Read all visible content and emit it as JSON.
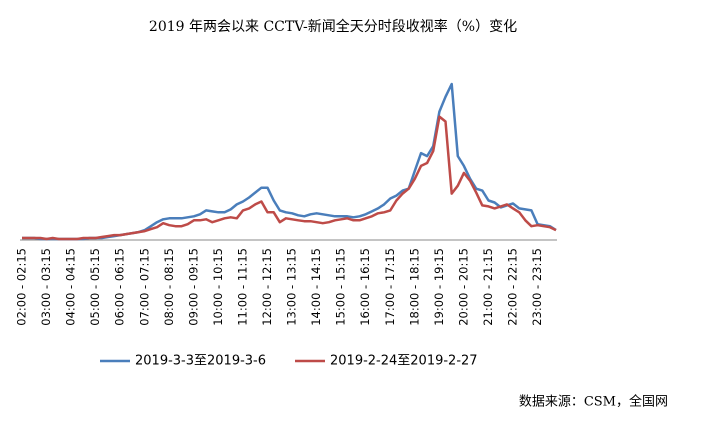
{
  "chart_data": {
    "type": "line",
    "title": "2019 年两会以来 CCTV-新闻全天分时段收视率（%）变化",
    "source": "数据来源：CSM，全国网",
    "categories": [
      "02:00 - 02:15",
      null,
      null,
      null,
      "03:00 - 03:15",
      null,
      null,
      null,
      "04:00 - 04:15",
      null,
      null,
      null,
      "05:00 - 05:15",
      null,
      null,
      null,
      "06:00 - 06:15",
      null,
      null,
      null,
      "07:00 - 07:15",
      null,
      null,
      null,
      "08:00 - 08:15",
      null,
      null,
      null,
      "09:00 - 09:15",
      null,
      null,
      null,
      "10:00 - 10:15",
      null,
      null,
      null,
      "11:00 - 11:15",
      null,
      null,
      null,
      "12:00 - 12:15",
      null,
      null,
      null,
      "13:00 - 13:15",
      null,
      null,
      null,
      "14:00 - 14:15",
      null,
      null,
      null,
      "15:00 - 15:15",
      null,
      null,
      null,
      "16:00 - 16:15",
      null,
      null,
      null,
      "17:00 - 17:15",
      null,
      null,
      null,
      "18:00 - 18:15",
      null,
      null,
      null,
      "19:00 - 19:15",
      null,
      null,
      null,
      "20:00 - 20:15",
      null,
      null,
      null,
      "21:00 - 21:15",
      null,
      null,
      null,
      "22:00 - 22:15",
      null,
      null,
      null,
      "23:00 - 23:15",
      null,
      null,
      null
    ],
    "series": [
      {
        "name": "2019-3-3至2019-3-6",
        "color": "#4a7ebb",
        "values": [
          0.02,
          0.02,
          0.02,
          0.01,
          0.01,
          0.01,
          0.01,
          0.01,
          0.01,
          0.01,
          0.01,
          0.02,
          0.02,
          0.02,
          0.03,
          0.04,
          0.05,
          0.06,
          0.07,
          0.08,
          0.1,
          0.14,
          0.18,
          0.21,
          0.22,
          0.22,
          0.22,
          0.23,
          0.24,
          0.26,
          0.3,
          0.29,
          0.28,
          0.28,
          0.31,
          0.36,
          0.39,
          0.43,
          0.48,
          0.53,
          0.53,
          0.4,
          0.3,
          0.28,
          0.27,
          0.25,
          0.24,
          0.26,
          0.27,
          0.26,
          0.25,
          0.24,
          0.24,
          0.24,
          0.23,
          0.24,
          0.26,
          0.29,
          0.32,
          0.36,
          0.42,
          0.45,
          0.5,
          0.52,
          0.7,
          0.88,
          0.85,
          0.95,
          1.3,
          1.45,
          1.58,
          0.85,
          0.75,
          0.62,
          0.52,
          0.5,
          0.4,
          0.38,
          0.33,
          0.35,
          0.37,
          0.32,
          0.31,
          0.3,
          0.16,
          0.15,
          0.14,
          0.1
        ]
      },
      {
        "name": "2019-2-24至2019-2-27",
        "color": "#be4b48",
        "values": [
          0.02,
          0.02,
          0.02,
          0.02,
          0.01,
          0.02,
          0.01,
          0.01,
          0.01,
          0.01,
          0.02,
          0.02,
          0.02,
          0.03,
          0.04,
          0.05,
          0.05,
          0.06,
          0.07,
          0.08,
          0.09,
          0.11,
          0.13,
          0.17,
          0.15,
          0.14,
          0.14,
          0.16,
          0.2,
          0.2,
          0.21,
          0.18,
          0.2,
          0.22,
          0.23,
          0.22,
          0.3,
          0.32,
          0.36,
          0.39,
          0.28,
          0.28,
          0.18,
          0.22,
          0.21,
          0.2,
          0.19,
          0.19,
          0.18,
          0.17,
          0.18,
          0.2,
          0.21,
          0.22,
          0.2,
          0.2,
          0.22,
          0.24,
          0.27,
          0.28,
          0.3,
          0.4,
          0.47,
          0.52,
          0.62,
          0.75,
          0.78,
          0.9,
          1.25,
          1.2,
          0.47,
          0.55,
          0.68,
          0.6,
          0.48,
          0.35,
          0.34,
          0.32,
          0.34,
          0.36,
          0.32,
          0.28,
          0.2,
          0.14,
          0.15,
          0.14,
          0.13,
          0.1
        ]
      }
    ],
    "ylim": [
      0,
      1.6
    ],
    "legend": "bottom"
  }
}
